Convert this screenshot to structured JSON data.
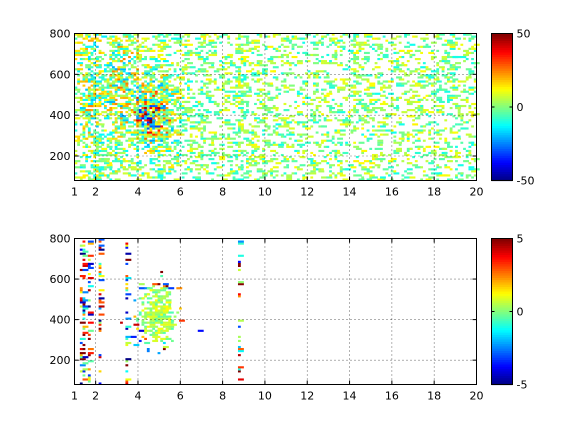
{
  "chart_data": [
    {
      "type": "heatmap",
      "title": "",
      "xlabel": "",
      "ylabel": "",
      "xlim": [
        1,
        20
      ],
      "ylim": [
        80,
        800
      ],
      "xticks": [
        1,
        2,
        4,
        6,
        8,
        10,
        12,
        14,
        16,
        18,
        20
      ],
      "yticks": [
        200,
        400,
        600,
        800
      ],
      "grid": true,
      "colorbar": {
        "min": -50,
        "max": 50,
        "ticks": [
          -50,
          0,
          50
        ],
        "colormap": "jet"
      },
      "blobs": [
        {
          "x": 4.6,
          "y": 420,
          "sx": 0.9,
          "sy": 150,
          "weight": 1.0
        },
        {
          "x": 3.2,
          "y": 550,
          "sx": 0.8,
          "sy": 250,
          "weight": 0.7
        },
        {
          "x": 1.8,
          "y": 500,
          "sx": 0.5,
          "sy": 300,
          "weight": 0.6
        }
      ],
      "stripes_x": [
        2.0,
        3.0,
        4.0,
        5.0,
        5.9,
        8.8
      ],
      "background_density": 0.28,
      "hot_spot": {
        "x": 4.6,
        "y": 390,
        "value": 30
      }
    },
    {
      "type": "heatmap",
      "title": "",
      "xlabel": "",
      "ylabel": "",
      "xlim": [
        1,
        20
      ],
      "ylim": [
        80,
        800
      ],
      "xticks": [
        1,
        2,
        4,
        6,
        8,
        10,
        12,
        14,
        16,
        18,
        20
      ],
      "yticks": [
        200,
        400,
        600,
        800
      ],
      "grid": true,
      "colorbar": {
        "min": -5,
        "max": 5,
        "ticks": [
          -5,
          0,
          5
        ],
        "colormap": "jet"
      },
      "blobs": [
        {
          "x": 4.9,
          "y": 430,
          "sx": 0.55,
          "sy": 80,
          "weight": 1.0
        }
      ],
      "stripes_x": [
        1.4,
        1.7,
        2.2,
        3.5,
        8.8
      ],
      "background_density": 0.0,
      "hot_spot": {
        "x": 4.9,
        "y": 430,
        "value": 0.5
      }
    }
  ]
}
